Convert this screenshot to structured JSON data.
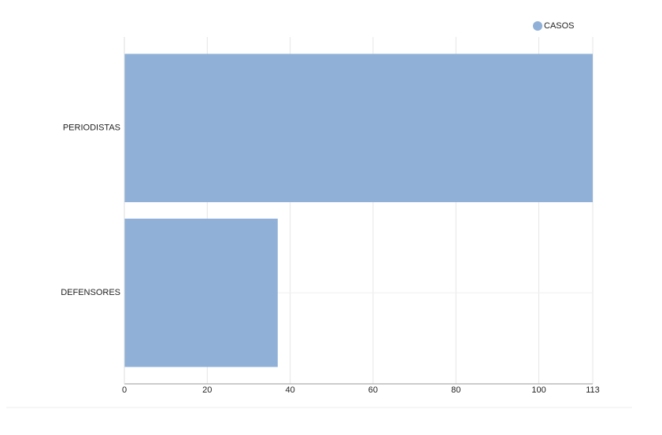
{
  "chart_data": {
    "type": "bar",
    "orientation": "horizontal",
    "categories": [
      "PERIODISTAS",
      "DEFENSORES"
    ],
    "series": [
      {
        "name": "CASOS",
        "color": "#90b0d8",
        "values": [
          113,
          37
        ]
      }
    ],
    "xlim": [
      0,
      113
    ],
    "xticks": [
      0,
      20,
      40,
      60,
      80,
      100,
      113
    ],
    "grid": true,
    "legend": "top-right"
  }
}
